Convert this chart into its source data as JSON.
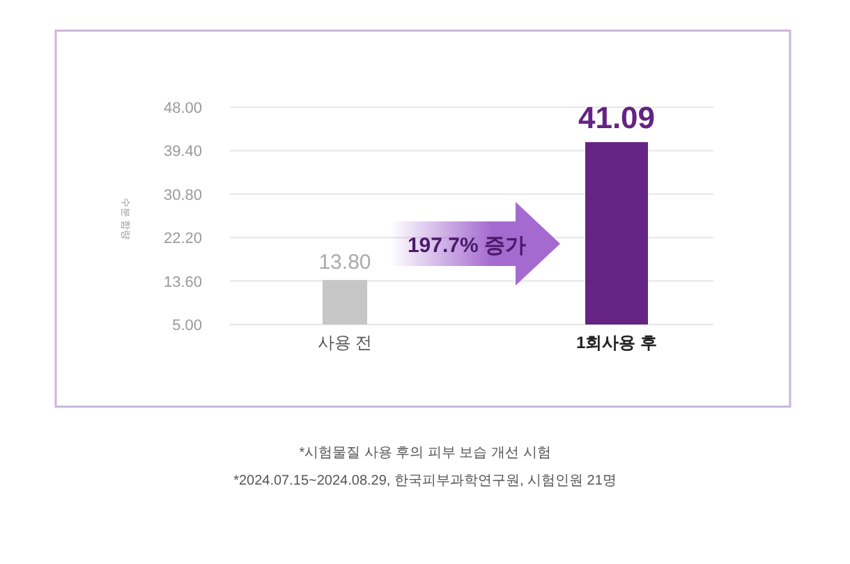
{
  "chart_data": {
    "type": "bar",
    "ylabel": "수분 함량",
    "categories": [
      "사용 전",
      "1회사용 후"
    ],
    "values": [
      13.8,
      41.09
    ],
    "colors": [
      "#c6c6c6",
      "#652383"
    ],
    "value_labels": [
      "13.80",
      "41.09"
    ],
    "ylim": [
      5,
      48
    ],
    "yticks": [
      {
        "value": 5,
        "label": "5.00"
      },
      {
        "value": 13.6,
        "label": "13.60"
      },
      {
        "value": 22.2,
        "label": "22.20"
      },
      {
        "value": 30.8,
        "label": "30.80"
      },
      {
        "value": 39.4,
        "label": "39.40"
      },
      {
        "value": 48,
        "label": "48.00"
      }
    ],
    "grid": "y",
    "annotations": [
      "197.7% 증가",
      "*시험물질 사용 후의  피부 보습 개선 시험",
      "*2024.07.15~2024.08.29, 한국피부과학연구원, 시험인원 21명"
    ]
  }
}
